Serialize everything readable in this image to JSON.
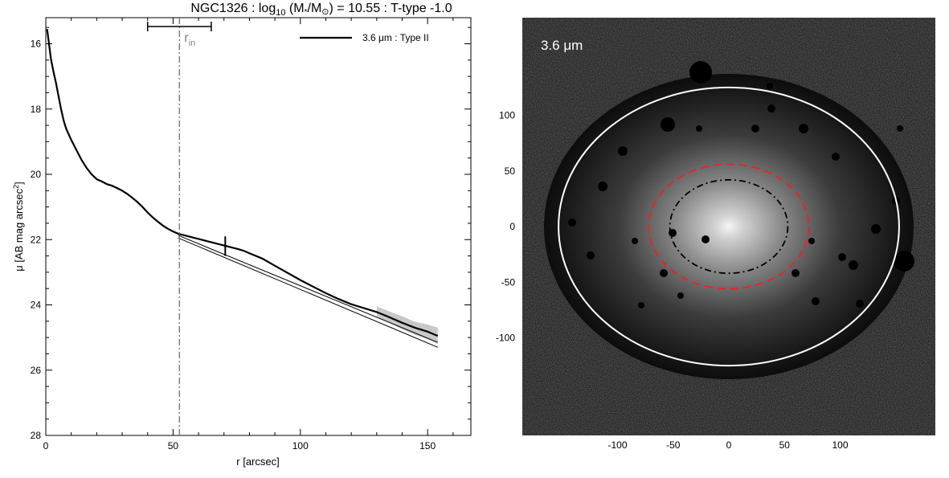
{
  "title": {
    "galaxy": "NGC1326",
    "sep1": " : ",
    "log": "log",
    "log_sub": "10",
    "paren_open": " (M",
    "star": "*",
    "slash": "/M",
    "sun": "⊙",
    "eq": ") = 10.55 : T-type -1.0"
  },
  "colors": {
    "profile_line": "#000000",
    "model_line": "#000000",
    "rin_line": "#808080",
    "error_band": "#c8c8c8",
    "ellipse_outer": "#ffffff",
    "ellipse_mid": "#e32626",
    "ellipse_inner": "#000000",
    "image_background": "#0a0a0a"
  },
  "chart_data": [
    {
      "type": "line",
      "title": "NGC1326 : log10 (M*/M⊙) = 10.55 : T-type -1.0",
      "xlabel": "r [arcsec]",
      "ylabel_main": "μ [AB mag arcsec",
      "ylabel_sup": "2",
      "ylabel_end": "]",
      "xlim": [
        0,
        167
      ],
      "ylim": [
        28,
        15.2
      ],
      "y_inverted": true,
      "x_ticks": [
        0,
        50,
        100,
        150
      ],
      "y_ticks": [
        16,
        18,
        20,
        22,
        24,
        26,
        28
      ],
      "grid": false,
      "legend_position": "top-right",
      "legend_label": "3.6 μm : Type II",
      "r_in": 52.5,
      "r_in_label": "r",
      "r_in_sub": "in",
      "r_in_range": [
        40,
        65
      ],
      "break_radius": 70.5,
      "break_mu_range": [
        21.9,
        22.5
      ],
      "series": [
        {
          "name": "3.6 μm : Type II",
          "x": [
            0.5,
            1,
            2,
            3,
            4,
            5,
            6,
            7,
            8,
            10,
            12,
            14,
            16,
            18,
            20,
            22,
            24,
            26,
            28,
            30,
            32,
            34,
            36,
            38,
            40,
            42,
            44,
            46,
            48,
            50,
            52,
            54,
            56,
            58,
            60,
            62,
            64,
            66,
            68,
            70,
            72,
            74,
            76,
            78,
            80,
            85,
            90,
            95,
            100,
            105,
            110,
            115,
            120,
            125,
            130,
            135,
            140,
            145,
            150,
            154
          ],
          "y": [
            15.55,
            15.85,
            16.45,
            16.85,
            17.2,
            17.6,
            18.0,
            18.35,
            18.6,
            18.95,
            19.25,
            19.55,
            19.8,
            20.0,
            20.15,
            20.22,
            20.3,
            20.35,
            20.42,
            20.5,
            20.6,
            20.72,
            20.85,
            21.0,
            21.17,
            21.32,
            21.45,
            21.57,
            21.67,
            21.75,
            21.82,
            21.86,
            21.9,
            21.94,
            21.98,
            22.02,
            22.06,
            22.1,
            22.14,
            22.18,
            22.22,
            22.26,
            22.3,
            22.35,
            22.42,
            22.58,
            22.8,
            23.02,
            23.24,
            23.44,
            23.64,
            23.82,
            23.98,
            24.1,
            24.22,
            24.38,
            24.55,
            24.7,
            24.82,
            24.95
          ],
          "error_upper": [
            24.05,
            24.2,
            24.35,
            24.52,
            24.6,
            24.7
          ],
          "error_lower": [
            24.35,
            24.55,
            24.75,
            24.92,
            25.05,
            25.2
          ],
          "error_x": [
            130,
            135,
            140,
            145,
            150,
            154
          ]
        },
        {
          "fit_inner": {
            "x": [
              52,
              154
            ],
            "y": [
              21.95,
              25.3
            ]
          },
          "fit_outer": {
            "x": [
              52,
              154
            ],
            "y": [
              21.87,
              25.15
            ]
          }
        }
      ]
    },
    {
      "type": "image",
      "panel_label": "3.6 μm",
      "xlim": [
        -190,
        190
      ],
      "ylim": [
        -190,
        190
      ],
      "x_ticks": [
        -100,
        -50,
        0,
        50,
        100
      ],
      "y_ticks": [
        -100,
        -50,
        0,
        50,
        100
      ],
      "ellipses": [
        {
          "name": "outer",
          "cx": 0,
          "cy": 0,
          "rx": 153,
          "ry": 125,
          "style": "solid"
        },
        {
          "name": "break",
          "cx": 0,
          "cy": 0,
          "rx": 72,
          "ry": 56,
          "style": "dashed"
        },
        {
          "name": "r_in",
          "cx": 0,
          "cy": 0,
          "rx": 53,
          "ry": 42,
          "style": "dash-dot"
        }
      ]
    }
  ]
}
